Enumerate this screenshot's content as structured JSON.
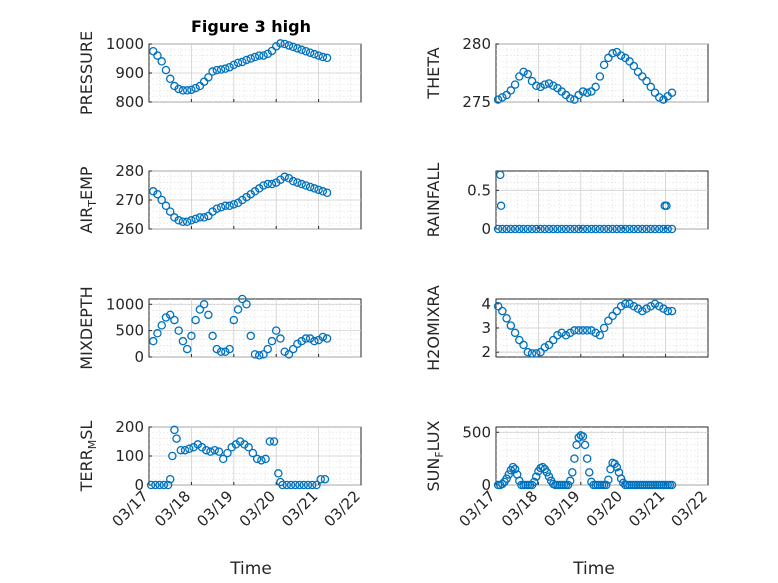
{
  "figure": {
    "title": "Figure 3 high",
    "marker_color": "#0072BD",
    "x_axis_label_left": "Time",
    "x_axis_label_right": "Time",
    "date_ticks": [
      "03/17",
      "03/18",
      "03/19",
      "03/20",
      "03/21",
      "03/22"
    ]
  },
  "chart_data": [
    {
      "id": "pressure",
      "type": "scatter",
      "ylabel": "PRESSURE",
      "ylabel_main": "PRESSURE",
      "ylabel_sub": "",
      "ylabel_tail": "",
      "xlim": [
        "03/17",
        "03/22"
      ],
      "ylim": [
        800,
        1000
      ],
      "yticks": [
        800,
        900,
        1000
      ],
      "ytick_labels": [
        "800",
        "900",
        "1000"
      ],
      "x_days": [
        0.1,
        0.2,
        0.3,
        0.4,
        0.5,
        0.6,
        0.7,
        0.8,
        0.9,
        1.0,
        1.1,
        1.2,
        1.3,
        1.4,
        1.5,
        1.6,
        1.7,
        1.8,
        1.9,
        2.0,
        2.1,
        2.2,
        2.3,
        2.4,
        2.5,
        2.6,
        2.7,
        2.8,
        2.9,
        3.0,
        3.1,
        3.2,
        3.3,
        3.4,
        3.5,
        3.6,
        3.7,
        3.8,
        3.9,
        4.0,
        4.1,
        4.2
      ],
      "values": [
        975,
        960,
        940,
        910,
        880,
        855,
        845,
        840,
        840,
        842,
        848,
        855,
        870,
        885,
        905,
        910,
        912,
        915,
        920,
        928,
        935,
        938,
        945,
        950,
        955,
        960,
        960,
        966,
        976,
        992,
        1002,
        1000,
        995,
        990,
        985,
        980,
        975,
        970,
        965,
        960,
        955,
        952
      ]
    },
    {
      "id": "theta",
      "type": "scatter",
      "ylabel": "THETA",
      "ylabel_main": "THETA",
      "ylabel_sub": "",
      "ylabel_tail": "",
      "xlim": [
        "03/17",
        "03/22"
      ],
      "ylim": [
        275,
        280
      ],
      "yticks": [
        275,
        280
      ],
      "ytick_labels": [
        "275",
        "280"
      ],
      "x_days": [
        0.05,
        0.15,
        0.25,
        0.35,
        0.45,
        0.55,
        0.65,
        0.75,
        0.85,
        0.95,
        1.05,
        1.15,
        1.25,
        1.35,
        1.45,
        1.55,
        1.65,
        1.75,
        1.85,
        1.95,
        2.05,
        2.15,
        2.25,
        2.35,
        2.45,
        2.55,
        2.65,
        2.75,
        2.85,
        2.95,
        3.05,
        3.15,
        3.25,
        3.35,
        3.45,
        3.55,
        3.65,
        3.75,
        3.85,
        3.95,
        4.05,
        4.15
      ],
      "values": [
        275.2,
        275.4,
        275.6,
        276.0,
        276.5,
        277.2,
        277.6,
        277.4,
        276.8,
        276.4,
        276.3,
        276.5,
        276.6,
        276.4,
        276.2,
        275.9,
        275.6,
        275.3,
        275.2,
        275.6,
        275.9,
        275.8,
        275.9,
        276.3,
        277.2,
        278.2,
        278.8,
        279.2,
        279.3,
        279.0,
        278.8,
        278.5,
        278.1,
        277.6,
        277.2,
        276.8,
        276.3,
        275.8,
        275.4,
        275.2,
        275.5,
        275.8
      ]
    },
    {
      "id": "air_temp",
      "type": "scatter",
      "ylabel": "AIR_TEMP",
      "ylabel_main": "AIR",
      "ylabel_sub": "T",
      "ylabel_tail": "EMP",
      "xlim": [
        "03/17",
        "03/22"
      ],
      "ylim": [
        260,
        280
      ],
      "yticks": [
        260,
        270,
        280
      ],
      "ytick_labels": [
        "260",
        "270",
        "280"
      ],
      "x_days": [
        0.1,
        0.2,
        0.3,
        0.4,
        0.5,
        0.6,
        0.7,
        0.8,
        0.9,
        1.0,
        1.1,
        1.2,
        1.3,
        1.4,
        1.5,
        1.6,
        1.7,
        1.8,
        1.9,
        2.0,
        2.1,
        2.2,
        2.3,
        2.4,
        2.5,
        2.6,
        2.7,
        2.8,
        2.9,
        3.0,
        3.1,
        3.2,
        3.3,
        3.4,
        3.5,
        3.6,
        3.7,
        3.8,
        3.9,
        4.0,
        4.1,
        4.2
      ],
      "values": [
        273,
        272,
        270,
        268,
        266,
        264,
        263,
        262.5,
        262.5,
        263,
        263.5,
        264,
        264,
        264.5,
        266,
        267,
        267.5,
        268,
        268,
        268.5,
        269,
        270,
        271,
        272,
        273,
        274,
        275,
        275.5,
        275.5,
        276,
        277,
        278,
        277.5,
        276.5,
        276,
        275.5,
        275,
        274.5,
        274,
        273.5,
        273,
        272.5
      ]
    },
    {
      "id": "rainfall",
      "type": "scatter",
      "ylabel": "RAINFALL",
      "ylabel_main": "RAINFALL",
      "ylabel_sub": "",
      "ylabel_tail": "",
      "xlim": [
        "03/17",
        "03/22"
      ],
      "ylim": [
        0,
        0.75
      ],
      "yticks": [
        0,
        0.5
      ],
      "ytick_labels": [
        "0",
        "0.5"
      ],
      "x_days": [
        0.05,
        0.15,
        0.25,
        0.35,
        0.45,
        0.55,
        0.65,
        0.75,
        0.85,
        0.95,
        1.05,
        1.15,
        1.25,
        1.35,
        1.45,
        1.55,
        1.65,
        1.75,
        1.85,
        1.95,
        2.05,
        2.15,
        2.25,
        2.35,
        2.45,
        2.55,
        2.65,
        2.75,
        2.85,
        2.95,
        3.05,
        3.15,
        3.25,
        3.35,
        3.45,
        3.55,
        3.65,
        3.75,
        3.85,
        3.95,
        4.05,
        4.15,
        0.1,
        0.12,
        3.98,
        4.02
      ],
      "values": [
        0,
        0,
        0,
        0,
        0,
        0,
        0,
        0,
        0,
        0,
        0,
        0,
        0,
        0,
        0,
        0,
        0,
        0,
        0,
        0,
        0,
        0,
        0,
        0,
        0,
        0,
        0,
        0,
        0,
        0,
        0,
        0,
        0,
        0,
        0,
        0,
        0,
        0,
        0,
        0,
        0,
        0,
        0.7,
        0.3,
        0.3,
        0.3
      ]
    },
    {
      "id": "mixdepth",
      "type": "scatter",
      "ylabel": "MIXDEPTH",
      "ylabel_main": "MIXDEPTH",
      "ylabel_sub": "",
      "ylabel_tail": "",
      "xlim": [
        "03/17",
        "03/22"
      ],
      "ylim": [
        0,
        1100
      ],
      "yticks": [
        0,
        500,
        1000
      ],
      "ytick_labels": [
        "0",
        "500",
        "1000"
      ],
      "x_days": [
        0.1,
        0.2,
        0.3,
        0.4,
        0.5,
        0.6,
        0.7,
        0.8,
        0.9,
        1.0,
        1.1,
        1.2,
        1.3,
        1.4,
        1.5,
        1.6,
        1.7,
        1.8,
        1.9,
        2.0,
        2.1,
        2.2,
        2.3,
        2.4,
        2.5,
        2.6,
        2.7,
        2.8,
        2.9,
        3.0,
        3.1,
        3.2,
        3.3,
        3.4,
        3.5,
        3.6,
        3.7,
        3.8,
        3.9,
        4.0,
        4.1,
        4.2
      ],
      "values": [
        300,
        450,
        600,
        750,
        800,
        700,
        500,
        300,
        150,
        400,
        700,
        900,
        1000,
        800,
        400,
        150,
        100,
        100,
        150,
        700,
        900,
        1100,
        1000,
        400,
        50,
        30,
        50,
        150,
        300,
        500,
        350,
        100,
        50,
        150,
        250,
        300,
        350,
        350,
        300,
        320,
        380,
        350
      ]
    },
    {
      "id": "h2omixra",
      "type": "scatter",
      "ylabel": "H2OMIXRA",
      "ylabel_main": "H2OMIXRA",
      "ylabel_sub": "",
      "ylabel_tail": "",
      "xlim": [
        "03/17",
        "03/22"
      ],
      "ylim": [
        1.8,
        4.2
      ],
      "yticks": [
        2,
        3,
        4
      ],
      "ytick_labels": [
        "2",
        "3",
        "4"
      ],
      "x_days": [
        0.05,
        0.15,
        0.25,
        0.35,
        0.45,
        0.55,
        0.65,
        0.75,
        0.85,
        0.95,
        1.05,
        1.15,
        1.25,
        1.35,
        1.45,
        1.55,
        1.65,
        1.75,
        1.85,
        1.95,
        2.05,
        2.15,
        2.25,
        2.35,
        2.45,
        2.55,
        2.65,
        2.75,
        2.85,
        2.95,
        3.05,
        3.15,
        3.25,
        3.35,
        3.45,
        3.55,
        3.65,
        3.75,
        3.85,
        3.95,
        4.05,
        4.15
      ],
      "values": [
        3.9,
        3.7,
        3.4,
        3.1,
        2.8,
        2.5,
        2.3,
        2.0,
        1.95,
        1.95,
        2.0,
        2.2,
        2.3,
        2.5,
        2.7,
        2.8,
        2.7,
        2.8,
        2.9,
        2.9,
        2.9,
        2.9,
        2.9,
        2.8,
        2.7,
        3.0,
        3.3,
        3.5,
        3.7,
        3.9,
        4.0,
        4.0,
        3.9,
        3.8,
        3.7,
        3.8,
        3.9,
        4.0,
        3.9,
        3.8,
        3.7,
        3.7
      ]
    },
    {
      "id": "terr_msl",
      "type": "scatter",
      "ylabel": "TERR_MSL",
      "ylabel_main": "TERR",
      "ylabel_sub": "M",
      "ylabel_tail": "SL",
      "xlim": [
        "03/17",
        "03/22"
      ],
      "ylim": [
        0,
        200
      ],
      "yticks": [
        0,
        100,
        200
      ],
      "ytick_labels": [
        "0",
        "100",
        "200"
      ],
      "x_days": [
        0.05,
        0.15,
        0.25,
        0.35,
        0.45,
        0.5,
        0.55,
        0.6,
        0.65,
        0.75,
        0.85,
        0.95,
        1.05,
        1.15,
        1.25,
        1.35,
        1.45,
        1.55,
        1.65,
        1.75,
        1.85,
        1.95,
        2.05,
        2.15,
        2.25,
        2.35,
        2.45,
        2.55,
        2.65,
        2.75,
        2.85,
        2.95,
        3.05,
        3.1,
        3.15,
        3.25,
        3.35,
        3.45,
        3.55,
        3.65,
        3.75,
        3.85,
        3.95,
        4.05,
        4.15
      ],
      "values": [
        0,
        0,
        0,
        0,
        0,
        20,
        100,
        190,
        160,
        120,
        120,
        125,
        130,
        140,
        130,
        120,
        115,
        120,
        115,
        90,
        110,
        130,
        140,
        150,
        140,
        130,
        110,
        90,
        85,
        90,
        150,
        150,
        40,
        10,
        0,
        0,
        0,
        0,
        0,
        0,
        0,
        0,
        0,
        20,
        20
      ]
    },
    {
      "id": "sun_flux",
      "type": "scatter",
      "ylabel": "SUN_FLUX",
      "ylabel_main": "SUN",
      "ylabel_sub": "F",
      "ylabel_tail": "LUX",
      "xlim": [
        "03/17",
        "03/22"
      ],
      "ylim": [
        0,
        550
      ],
      "yticks": [
        0,
        500
      ],
      "ytick_labels": [
        "0",
        "500"
      ],
      "x_days": [
        0.05,
        0.1,
        0.15,
        0.2,
        0.25,
        0.3,
        0.35,
        0.4,
        0.45,
        0.5,
        0.55,
        0.6,
        0.65,
        0.7,
        0.75,
        0.8,
        0.85,
        0.9,
        0.95,
        1.0,
        1.05,
        1.1,
        1.15,
        1.2,
        1.25,
        1.3,
        1.35,
        1.4,
        1.45,
        1.5,
        1.55,
        1.6,
        1.65,
        1.7,
        1.75,
        1.8,
        1.85,
        1.9,
        1.95,
        2.0,
        2.05,
        2.1,
        2.15,
        2.2,
        2.25,
        2.3,
        2.35,
        2.4,
        2.45,
        2.5,
        2.55,
        2.6,
        2.65,
        2.7,
        2.75,
        2.8,
        2.85,
        2.9,
        2.95,
        3.0,
        3.05,
        3.1,
        3.15,
        3.2,
        3.25,
        3.3,
        3.35,
        3.4,
        3.45,
        3.5,
        3.55,
        3.6,
        3.65,
        3.7,
        3.75,
        3.8,
        3.85,
        3.9,
        3.95,
        4.0,
        4.05,
        4.1,
        4.15
      ],
      "values": [
        0,
        0,
        10,
        30,
        60,
        100,
        140,
        170,
        150,
        100,
        40,
        0,
        0,
        0,
        0,
        0,
        0,
        30,
        80,
        130,
        160,
        170,
        150,
        120,
        80,
        40,
        10,
        0,
        0,
        0,
        0,
        0,
        0,
        0,
        40,
        120,
        250,
        380,
        450,
        470,
        460,
        380,
        250,
        120,
        30,
        0,
        0,
        0,
        0,
        0,
        0,
        0,
        50,
        150,
        210,
        200,
        170,
        120,
        60,
        20,
        0,
        0,
        0,
        0,
        0,
        0,
        0,
        0,
        0,
        0,
        0,
        0,
        0,
        0,
        0,
        0,
        0,
        0,
        0,
        0,
        0,
        0,
        0
      ]
    }
  ]
}
